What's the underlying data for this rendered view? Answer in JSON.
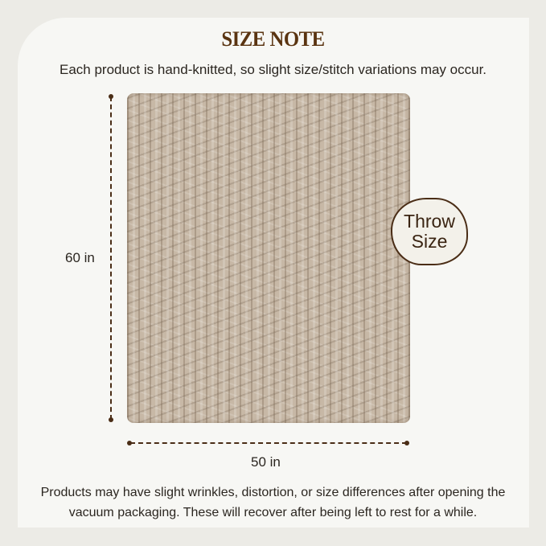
{
  "title": "SIZE NOTE",
  "subtitle": "Each product is hand-knitted, so slight size/stitch variations may occur.",
  "dimensions": {
    "height": "60 in",
    "width": "50 in"
  },
  "badge": {
    "line1": "Throw",
    "line2": "Size"
  },
  "footer": {
    "line1": "Products may have slight wrinkles, distortion, or size differences after opening the",
    "line2": "vacuum packaging. These will recover after being left to rest for a while."
  },
  "colors": {
    "title": "#5a3411",
    "blanket": "#c7b8a6",
    "background": "#f7f7f4"
  }
}
